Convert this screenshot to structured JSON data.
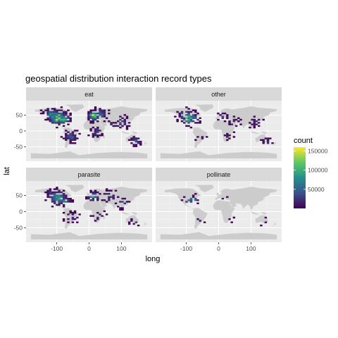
{
  "chart_data": {
    "type": "heatmap",
    "title": "geospatial distribution interaction record types",
    "xlabel": "long",
    "ylabel": "lat",
    "facets": [
      "eat",
      "other",
      "parasite",
      "pollinate"
    ],
    "x_ticks": [
      -100,
      0,
      100
    ],
    "y_ticks": [
      50,
      0,
      -50
    ],
    "xlim": [
      -195,
      195
    ],
    "ylim": [
      -95,
      95
    ],
    "grid": true,
    "legend": {
      "title": "count",
      "position": "right",
      "ticks": [
        "150000",
        "100000",
        "50000"
      ],
      "tick_values": [
        150000,
        100000,
        50000
      ],
      "range": [
        0,
        160000
      ],
      "colors": [
        "#440154",
        "#3b528b",
        "#21908c",
        "#5dc863",
        "#fde725"
      ]
    }
  }
}
